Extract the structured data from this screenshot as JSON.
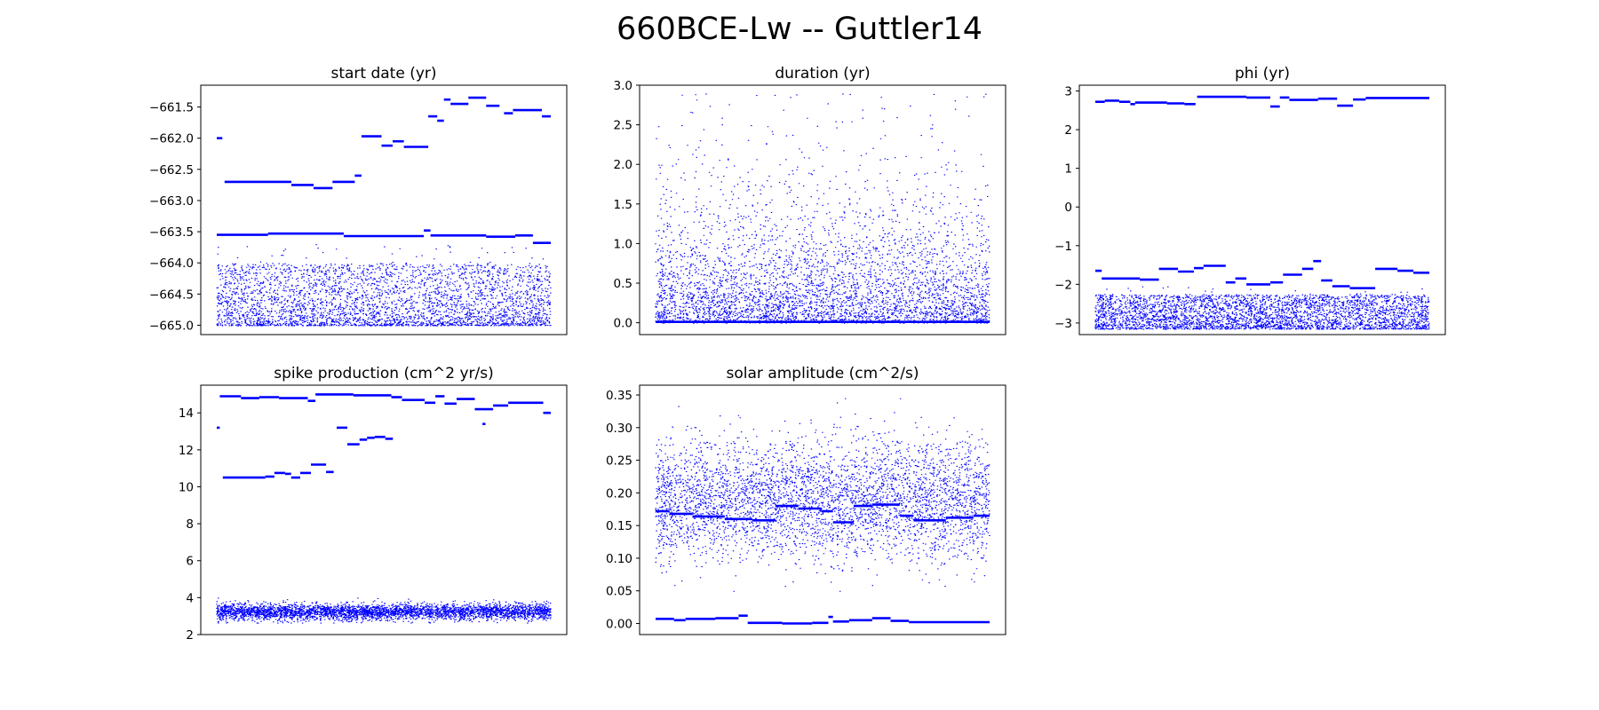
{
  "figure": {
    "title": "660BCE-Lw -- Guttler14",
    "point_color": "#0000ff"
  },
  "chart_data": [
    {
      "type": "scatter",
      "title": "start date (yr)",
      "ylim": [
        -665.15,
        -661.15
      ],
      "yticks": [
        -661.5,
        -662.0,
        -662.5,
        -663.0,
        -663.5,
        -664.0,
        -664.5,
        -665.0
      ],
      "ytick_labels": [
        "−661.5",
        "−662.0",
        "−662.5",
        "−663.0",
        "−663.5",
        "−664.0",
        "−664.5",
        "−665.0"
      ],
      "xticks": "none",
      "series": [
        {
          "kind": "steps",
          "segments": [
            {
              "x0": 0,
              "x1": 250,
              "y": -662.0
            },
            {
              "x0": 350,
              "x1": 3350,
              "y": -662.7
            },
            {
              "x0": 3350,
              "x1": 4350,
              "y": -662.75
            },
            {
              "x0": 4350,
              "x1": 5200,
              "y": -662.8
            },
            {
              "x0": 5200,
              "x1": 6200,
              "y": -662.7
            },
            {
              "x0": 6200,
              "x1": 6500,
              "y": -662.6
            },
            {
              "x0": 6500,
              "x1": 7400,
              "y": -661.97
            },
            {
              "x0": 7400,
              "x1": 7900,
              "y": -662.12
            },
            {
              "x0": 7900,
              "x1": 8400,
              "y": -662.05
            },
            {
              "x0": 8400,
              "x1": 9500,
              "y": -662.14
            },
            {
              "x0": 9500,
              "x1": 9900,
              "y": -661.65
            },
            {
              "x0": 9900,
              "x1": 10200,
              "y": -661.72
            },
            {
              "x0": 10200,
              "x1": 10500,
              "y": -661.38
            },
            {
              "x0": 10500,
              "x1": 11300,
              "y": -661.45
            },
            {
              "x0": 11300,
              "x1": 12100,
              "y": -661.35
            },
            {
              "x0": 12100,
              "x1": 12700,
              "y": -661.48
            },
            {
              "x0": 12900,
              "x1": 13300,
              "y": -661.6
            },
            {
              "x0": 13300,
              "x1": 14600,
              "y": -661.55
            },
            {
              "x0": 14600,
              "x1": 15000,
              "y": -661.65
            },
            {
              "x0": 0,
              "x1": 2300,
              "y": -663.55
            },
            {
              "x0": 2300,
              "x1": 5700,
              "y": -663.53
            },
            {
              "x0": 5700,
              "x1": 9300,
              "y": -663.57
            },
            {
              "x0": 9300,
              "x1": 9600,
              "y": -663.48
            },
            {
              "x0": 9600,
              "x1": 12100,
              "y": -663.56
            },
            {
              "x0": 12100,
              "x1": 13400,
              "y": -663.58
            },
            {
              "x0": 13400,
              "x1": 14200,
              "y": -663.56
            },
            {
              "x0": 14200,
              "x1": 15000,
              "y": -663.68
            }
          ]
        },
        {
          "kind": "cloud",
          "n": 3600,
          "mode": "uniform",
          "min": -665.0,
          "max": -664.0,
          "skew": 1.6,
          "outliers": 40,
          "omax": -663.7
        }
      ]
    },
    {
      "type": "scatter",
      "title": "duration (yr)",
      "ylim": [
        -0.15,
        3.0
      ],
      "yticks": [
        0.0,
        0.5,
        1.0,
        1.5,
        2.0,
        2.5,
        3.0
      ],
      "ytick_labels": [
        "0.0",
        "0.5",
        "1.0",
        "1.5",
        "2.0",
        "2.5",
        "3.0"
      ],
      "xticks": "none",
      "series": [
        {
          "kind": "steps",
          "segments": [
            {
              "x0": 0,
              "x1": 15000,
              "y": 0.01
            }
          ]
        },
        {
          "kind": "cloud",
          "n": 4200,
          "mode": "exp",
          "min": 0.0,
          "max": 2.9,
          "scale": 0.55,
          "outliers": 12,
          "omax": 2.85
        }
      ]
    },
    {
      "type": "scatter",
      "title": "phi (yr)",
      "ylim": [
        -3.3,
        3.15
      ],
      "yticks": [
        3,
        2,
        1,
        0,
        -1,
        -2,
        -3
      ],
      "ytick_labels": [
        "3",
        "2",
        "1",
        "0",
        "−1",
        "−2",
        "−3"
      ],
      "xticks": "none",
      "series": [
        {
          "kind": "steps",
          "segments": [
            {
              "x0": 0,
              "x1": 600,
              "y": 2.72
            },
            {
              "x0": 600,
              "x1": 1500,
              "y": 2.75
            },
            {
              "x0": 1500,
              "x1": 2200,
              "y": 2.72
            },
            {
              "x0": 2200,
              "x1": 2500,
              "y": 2.66
            },
            {
              "x0": 2500,
              "x1": 4500,
              "y": 2.7
            },
            {
              "x0": 4500,
              "x1": 5600,
              "y": 2.68
            },
            {
              "x0": 5600,
              "x1": 6300,
              "y": 2.66
            },
            {
              "x0": 6400,
              "x1": 9500,
              "y": 2.85
            },
            {
              "x0": 9500,
              "x1": 11000,
              "y": 2.83
            },
            {
              "x0": 11000,
              "x1": 11600,
              "y": 2.6
            },
            {
              "x0": 11600,
              "x1": 12200,
              "y": 2.83
            },
            {
              "x0": 12200,
              "x1": 14000,
              "y": 2.77
            },
            {
              "x0": 14000,
              "x1": 15200,
              "y": 2.8
            },
            {
              "x0": 15200,
              "x1": 16200,
              "y": 2.62
            },
            {
              "x0": 16200,
              "x1": 17000,
              "y": 2.78
            },
            {
              "x0": 17000,
              "x1": 21000,
              "y": 2.82
            },
            {
              "x0": 0,
              "x1": 400,
              "y": -1.65
            },
            {
              "x0": 400,
              "x1": 2800,
              "y": -1.85
            },
            {
              "x0": 2800,
              "x1": 4000,
              "y": -1.88
            },
            {
              "x0": 4000,
              "x1": 5200,
              "y": -1.6
            },
            {
              "x0": 5200,
              "x1": 6200,
              "y": -1.67
            },
            {
              "x0": 6200,
              "x1": 6800,
              "y": -1.58
            },
            {
              "x0": 6800,
              "x1": 8200,
              "y": -1.52
            },
            {
              "x0": 8200,
              "x1": 8800,
              "y": -1.95
            },
            {
              "x0": 8800,
              "x1": 9500,
              "y": -1.85
            },
            {
              "x0": 9500,
              "x1": 11000,
              "y": -2.0
            },
            {
              "x0": 11000,
              "x1": 11800,
              "y": -1.95
            },
            {
              "x0": 11800,
              "x1": 13000,
              "y": -1.75
            },
            {
              "x0": 13000,
              "x1": 13700,
              "y": -1.6
            },
            {
              "x0": 13700,
              "x1": 14200,
              "y": -1.4
            },
            {
              "x0": 14200,
              "x1": 14900,
              "y": -1.9
            },
            {
              "x0": 14900,
              "x1": 16000,
              "y": -2.05
            },
            {
              "x0": 16000,
              "x1": 17600,
              "y": -2.1
            },
            {
              "x0": 17600,
              "x1": 19000,
              "y": -1.6
            },
            {
              "x0": 19000,
              "x1": 20000,
              "y": -1.65
            },
            {
              "x0": 20000,
              "x1": 21000,
              "y": -1.7
            }
          ]
        },
        {
          "kind": "cloud",
          "n": 3800,
          "mode": "uniform",
          "min": -3.15,
          "max": -2.25,
          "skew": 1.3,
          "outliers": 20,
          "omax": -2.05
        }
      ]
    },
    {
      "type": "scatter",
      "title": "spike production (cm^2 yr/s)",
      "ylim": [
        2.0,
        15.5
      ],
      "yticks": [
        14,
        12,
        10,
        8,
        6,
        4,
        2
      ],
      "ytick_labels": [
        "14",
        "12",
        "10",
        "8",
        "6",
        "4",
        "2"
      ],
      "xticks": "none",
      "series": [
        {
          "kind": "steps",
          "segments": [
            {
              "x0": 0,
              "x1": 200,
              "y": 13.2
            },
            {
              "x0": 200,
              "x1": 1600,
              "y": 14.9
            },
            {
              "x0": 1600,
              "x1": 2800,
              "y": 14.8
            },
            {
              "x0": 2800,
              "x1": 4100,
              "y": 14.85
            },
            {
              "x0": 4100,
              "x1": 6000,
              "y": 14.8
            },
            {
              "x0": 6000,
              "x1": 6500,
              "y": 14.65
            },
            {
              "x0": 6500,
              "x1": 9000,
              "y": 15.0
            },
            {
              "x0": 9000,
              "x1": 11500,
              "y": 14.95
            },
            {
              "x0": 11500,
              "x1": 12200,
              "y": 14.85
            },
            {
              "x0": 12200,
              "x1": 13700,
              "y": 14.7
            },
            {
              "x0": 13700,
              "x1": 14400,
              "y": 14.55
            },
            {
              "x0": 14400,
              "x1": 15000,
              "y": 14.9
            },
            {
              "x0": 15000,
              "x1": 15800,
              "y": 14.5
            },
            {
              "x0": 15800,
              "x1": 17000,
              "y": 14.75
            },
            {
              "x0": 17000,
              "x1": 18200,
              "y": 14.2
            },
            {
              "x0": 18200,
              "x1": 19200,
              "y": 14.4
            },
            {
              "x0": 19200,
              "x1": 21500,
              "y": 14.55
            },
            {
              "x0": 21500,
              "x1": 22000,
              "y": 14.0
            },
            {
              "x0": 400,
              "x1": 3200,
              "y": 10.5
            },
            {
              "x0": 3200,
              "x1": 3800,
              "y": 10.55
            },
            {
              "x0": 3800,
              "x1": 4500,
              "y": 10.75
            },
            {
              "x0": 4500,
              "x1": 4900,
              "y": 10.7
            },
            {
              "x0": 4900,
              "x1": 5500,
              "y": 10.5
            },
            {
              "x0": 5500,
              "x1": 6200,
              "y": 10.75
            },
            {
              "x0": 6200,
              "x1": 7200,
              "y": 11.2
            },
            {
              "x0": 7200,
              "x1": 7700,
              "y": 10.8
            },
            {
              "x0": 7900,
              "x1": 8600,
              "y": 13.2
            },
            {
              "x0": 8600,
              "x1": 9400,
              "y": 12.3
            },
            {
              "x0": 9400,
              "x1": 9900,
              "y": 12.55
            },
            {
              "x0": 9900,
              "x1": 10400,
              "y": 12.65
            },
            {
              "x0": 10400,
              "x1": 11100,
              "y": 12.7
            },
            {
              "x0": 11100,
              "x1": 11600,
              "y": 12.6
            },
            {
              "x0": 17500,
              "x1": 17700,
              "y": 13.4
            }
          ]
        },
        {
          "kind": "cloud",
          "n": 4000,
          "mode": "normal",
          "center": 3.25,
          "sd": 0.22,
          "min": 2.65,
          "max": 4.0,
          "outliers": 0,
          "omax": 4.0
        }
      ]
    },
    {
      "type": "scatter",
      "title": "solar amplitude (cm^2/s)",
      "ylim": [
        -0.017,
        0.365
      ],
      "yticks": [
        0.35,
        0.3,
        0.25,
        0.2,
        0.15,
        0.1,
        0.05,
        0.0
      ],
      "ytick_labels": [
        "0.35",
        "0.30",
        "0.25",
        "0.20",
        "0.15",
        "0.10",
        "0.05",
        "0.00"
      ],
      "xticks": "none",
      "series": [
        {
          "kind": "steps",
          "segments": [
            {
              "x0": 0,
              "x1": 600,
              "y": 0.172
            },
            {
              "x0": 600,
              "x1": 1600,
              "y": 0.168
            },
            {
              "x0": 1600,
              "x1": 3000,
              "y": 0.164
            },
            {
              "x0": 3000,
              "x1": 4200,
              "y": 0.16
            },
            {
              "x0": 4200,
              "x1": 5200,
              "y": 0.158
            },
            {
              "x0": 5200,
              "x1": 6200,
              "y": 0.18
            },
            {
              "x0": 6200,
              "x1": 7200,
              "y": 0.176
            },
            {
              "x0": 7200,
              "x1": 7700,
              "y": 0.172
            },
            {
              "x0": 7700,
              "x1": 8600,
              "y": 0.155
            },
            {
              "x0": 8600,
              "x1": 9400,
              "y": 0.18
            },
            {
              "x0": 9400,
              "x1": 10600,
              "y": 0.182
            },
            {
              "x0": 10600,
              "x1": 11200,
              "y": 0.165
            },
            {
              "x0": 11200,
              "x1": 12600,
              "y": 0.158
            },
            {
              "x0": 12600,
              "x1": 13800,
              "y": 0.162
            },
            {
              "x0": 13800,
              "x1": 14500,
              "y": 0.165
            },
            {
              "x0": 0,
              "x1": 800,
              "y": 0.007
            },
            {
              "x0": 800,
              "x1": 1300,
              "y": 0.005
            },
            {
              "x0": 1300,
              "x1": 2600,
              "y": 0.007
            },
            {
              "x0": 2600,
              "x1": 3600,
              "y": 0.008
            },
            {
              "x0": 3600,
              "x1": 4000,
              "y": 0.012
            },
            {
              "x0": 4000,
              "x1": 5500,
              "y": 0.001
            },
            {
              "x0": 5500,
              "x1": 6800,
              "y": 0.0
            },
            {
              "x0": 6800,
              "x1": 7500,
              "y": 0.001
            },
            {
              "x0": 7500,
              "x1": 7700,
              "y": 0.01
            },
            {
              "x0": 7700,
              "x1": 8400,
              "y": 0.003
            },
            {
              "x0": 8400,
              "x1": 9400,
              "y": 0.005
            },
            {
              "x0": 9400,
              "x1": 10200,
              "y": 0.008
            },
            {
              "x0": 10200,
              "x1": 11000,
              "y": 0.004
            },
            {
              "x0": 11000,
              "x1": 14500,
              "y": 0.002
            }
          ]
        },
        {
          "kind": "cloud",
          "n": 4200,
          "mode": "normal",
          "center": 0.19,
          "sd": 0.045,
          "min": 0.05,
          "max": 0.345,
          "outliers": 0,
          "omax": 0.35
        }
      ]
    }
  ]
}
